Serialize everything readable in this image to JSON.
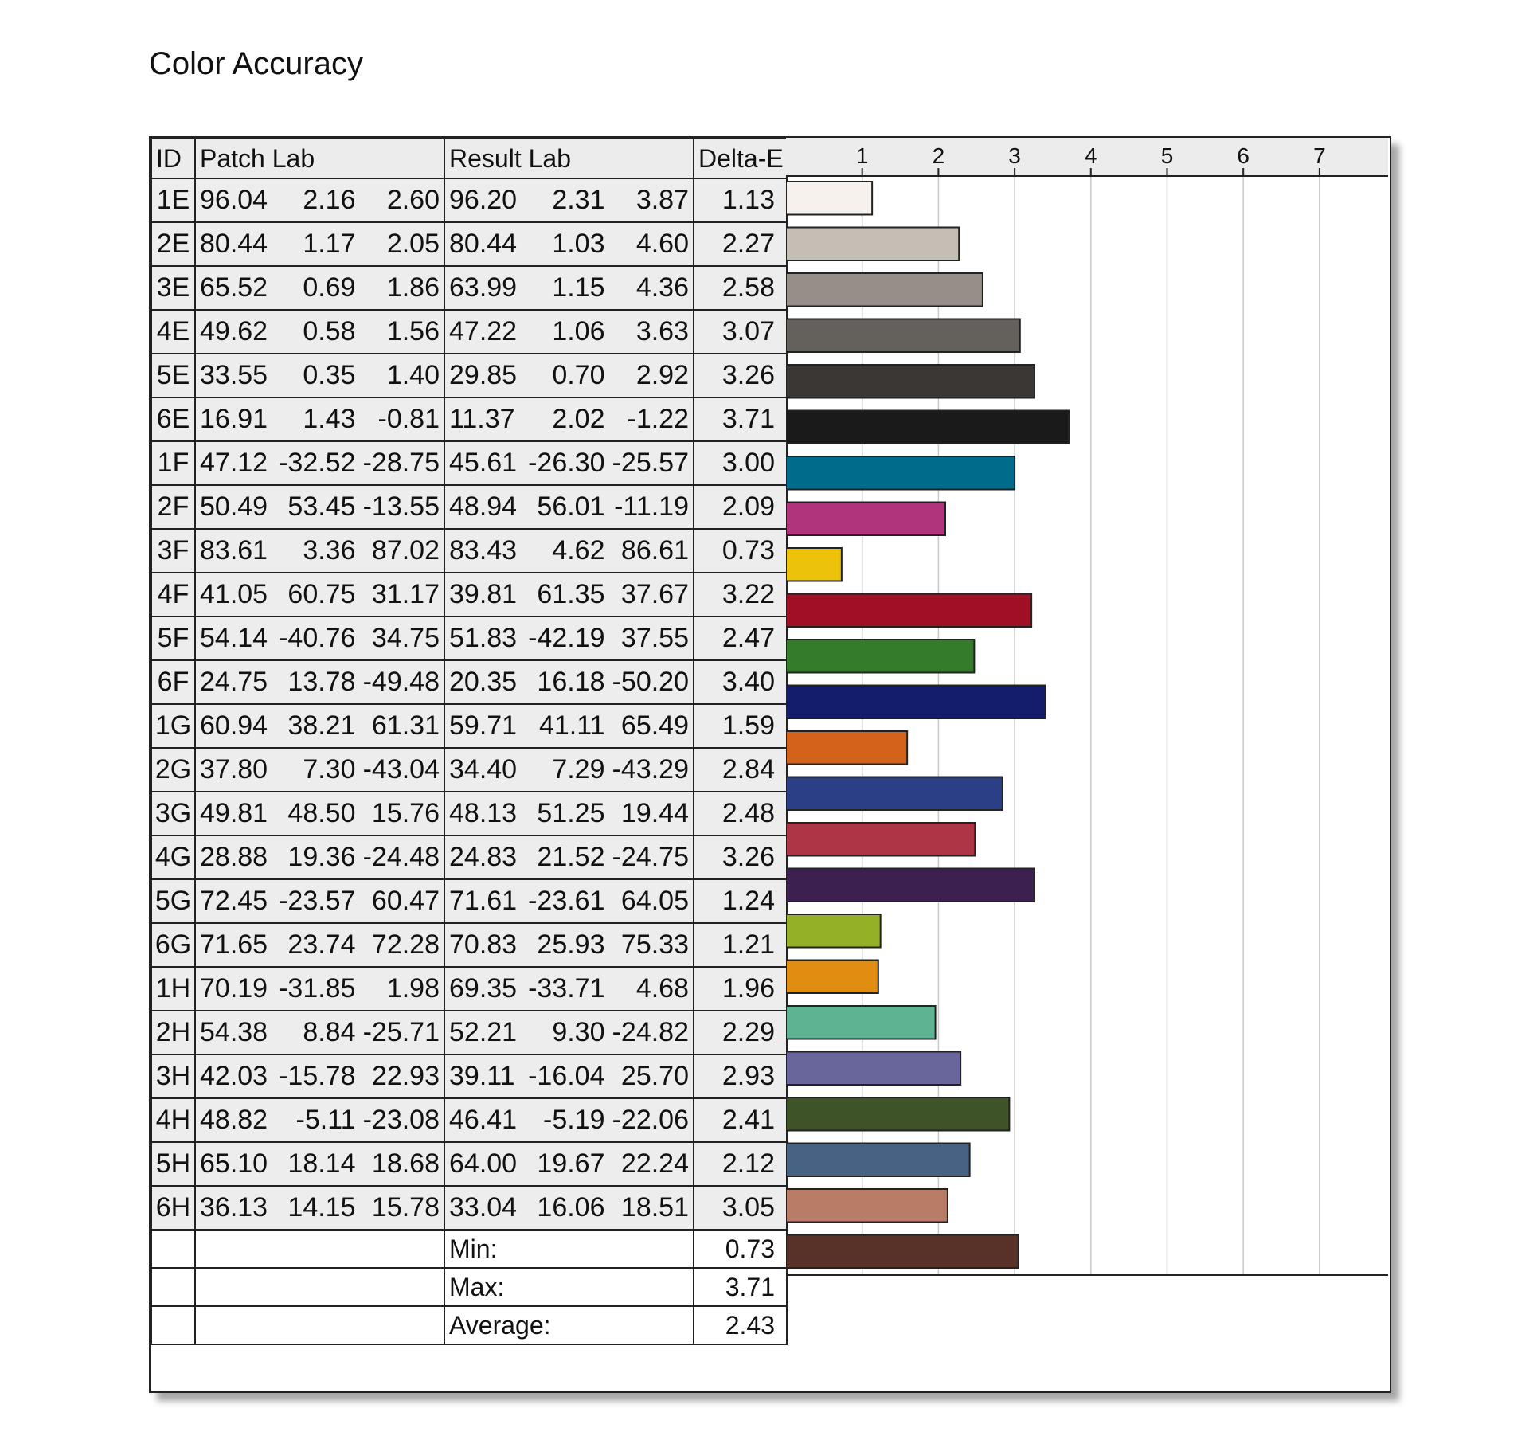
{
  "title": "Color Accuracy",
  "columns": {
    "id": "ID",
    "patch": "Patch Lab",
    "result": "Result Lab",
    "delta": "Delta-E"
  },
  "rows": [
    {
      "id": "1E",
      "patch": [
        "96.04",
        "2.16",
        "2.60"
      ],
      "result": [
        "96.20",
        "2.31",
        "3.87"
      ],
      "de": "1.13",
      "color": "#f7f1ee"
    },
    {
      "id": "2E",
      "patch": [
        "80.44",
        "1.17",
        "2.05"
      ],
      "result": [
        "80.44",
        "1.03",
        "4.60"
      ],
      "de": "2.27",
      "color": "#c5beb4"
    },
    {
      "id": "3E",
      "patch": [
        "65.52",
        "0.69",
        "1.86"
      ],
      "result": [
        "63.99",
        "1.15",
        "4.36"
      ],
      "de": "2.58",
      "color": "#968f88"
    },
    {
      "id": "4E",
      "patch": [
        "49.62",
        "0.58",
        "1.56"
      ],
      "result": [
        "47.22",
        "1.06",
        "3.63"
      ],
      "de": "3.07",
      "color": "#64605b"
    },
    {
      "id": "5E",
      "patch": [
        "33.55",
        "0.35",
        "1.40"
      ],
      "result": [
        "29.85",
        "0.70",
        "2.92"
      ],
      "de": "3.26",
      "color": "#3b3735"
    },
    {
      "id": "6E",
      "patch": [
        "16.91",
        "1.43",
        "-0.81"
      ],
      "result": [
        "11.37",
        "2.02",
        "-1.22"
      ],
      "de": "3.71",
      "color": "#1b1a1b"
    },
    {
      "id": "1F",
      "patch": [
        "47.12",
        "-32.52",
        "-28.75"
      ],
      "result": [
        "45.61",
        "-26.30",
        "-25.57"
      ],
      "de": "3.00",
      "color": "#006b8b"
    },
    {
      "id": "2F",
      "patch": [
        "50.49",
        "53.45",
        "-13.55"
      ],
      "result": [
        "48.94",
        "56.01",
        "-11.19"
      ],
      "de": "2.09",
      "color": "#b0347c"
    },
    {
      "id": "3F",
      "patch": [
        "83.61",
        "3.36",
        "87.02"
      ],
      "result": [
        "83.43",
        "4.62",
        "86.61"
      ],
      "de": "0.73",
      "color": "#ecc30a"
    },
    {
      "id": "4F",
      "patch": [
        "41.05",
        "60.75",
        "31.17"
      ],
      "result": [
        "39.81",
        "61.35",
        "37.67"
      ],
      "de": "3.22",
      "color": "#a10f24"
    },
    {
      "id": "5F",
      "patch": [
        "54.14",
        "-40.76",
        "34.75"
      ],
      "result": [
        "51.83",
        "-42.19",
        "37.55"
      ],
      "de": "2.47",
      "color": "#347b2c"
    },
    {
      "id": "6F",
      "patch": [
        "24.75",
        "13.78",
        "-49.48"
      ],
      "result": [
        "20.35",
        "16.18",
        "-50.20"
      ],
      "de": "3.40",
      "color": "#141d6a"
    },
    {
      "id": "1G",
      "patch": [
        "60.94",
        "38.21",
        "61.31"
      ],
      "result": [
        "59.71",
        "41.11",
        "65.49"
      ],
      "de": "1.59",
      "color": "#d4621a"
    },
    {
      "id": "2G",
      "patch": [
        "37.80",
        "7.30",
        "-43.04"
      ],
      "result": [
        "34.40",
        "7.29",
        "-43.29"
      ],
      "de": "2.84",
      "color": "#2b3f86"
    },
    {
      "id": "3G",
      "patch": [
        "49.81",
        "48.50",
        "15.76"
      ],
      "result": [
        "48.13",
        "51.25",
        "19.44"
      ],
      "de": "2.48",
      "color": "#ae3545"
    },
    {
      "id": "4G",
      "patch": [
        "28.88",
        "19.36",
        "-24.48"
      ],
      "result": [
        "24.83",
        "21.52",
        "-24.75"
      ],
      "de": "3.26",
      "color": "#3c2150"
    },
    {
      "id": "5G",
      "patch": [
        "72.45",
        "-23.57",
        "60.47"
      ],
      "result": [
        "71.61",
        "-23.61",
        "64.05"
      ],
      "de": "1.24",
      "color": "#93b026"
    },
    {
      "id": "6G",
      "patch": [
        "71.65",
        "23.74",
        "72.28"
      ],
      "result": [
        "70.83",
        "25.93",
        "75.33"
      ],
      "de": "1.21",
      "color": "#e08d12"
    },
    {
      "id": "1H",
      "patch": [
        "70.19",
        "-31.85",
        "1.98"
      ],
      "result": [
        "69.35",
        "-33.71",
        "4.68"
      ],
      "de": "1.96",
      "color": "#5db392"
    },
    {
      "id": "2H",
      "patch": [
        "54.38",
        "8.84",
        "-25.71"
      ],
      "result": [
        "52.21",
        "9.30",
        "-24.82"
      ],
      "de": "2.29",
      "color": "#68669a"
    },
    {
      "id": "3H",
      "patch": [
        "42.03",
        "-15.78",
        "22.93"
      ],
      "result": [
        "39.11",
        "-16.04",
        "25.70"
      ],
      "de": "2.93",
      "color": "#3e5328"
    },
    {
      "id": "4H",
      "patch": [
        "48.82",
        "-5.11",
        "-23.08"
      ],
      "result": [
        "46.41",
        "-5.19",
        "-22.06"
      ],
      "de": "2.41",
      "color": "#486283"
    },
    {
      "id": "5H",
      "patch": [
        "65.10",
        "18.14",
        "18.68"
      ],
      "result": [
        "64.00",
        "19.67",
        "22.24"
      ],
      "de": "2.12",
      "color": "#b97d67"
    },
    {
      "id": "6H",
      "patch": [
        "36.13",
        "14.15",
        "15.78"
      ],
      "result": [
        "33.04",
        "16.06",
        "18.51"
      ],
      "de": "3.05",
      "color": "#583229"
    }
  ],
  "summary": [
    {
      "label": "Min:",
      "value": "0.73"
    },
    {
      "label": "Max:",
      "value": "3.71"
    },
    {
      "label": "Average:",
      "value": "2.43"
    }
  ],
  "chart_data": {
    "type": "bar",
    "orientation": "horizontal",
    "title": "Color Accuracy",
    "categories": [
      "1E",
      "2E",
      "3E",
      "4E",
      "5E",
      "6E",
      "1F",
      "2F",
      "3F",
      "4F",
      "5F",
      "6F",
      "1G",
      "2G",
      "3G",
      "4G",
      "5G",
      "6G",
      "1H",
      "2H",
      "3H",
      "4H",
      "5H",
      "6H"
    ],
    "values": [
      1.13,
      2.27,
      2.58,
      3.07,
      3.26,
      3.71,
      3.0,
      2.09,
      0.73,
      3.22,
      2.47,
      3.4,
      1.59,
      2.84,
      2.48,
      3.26,
      1.24,
      1.21,
      1.96,
      2.29,
      2.93,
      2.41,
      2.12,
      3.05
    ],
    "xlim": [
      0,
      7.9
    ],
    "ticks": [
      "1",
      "2",
      "3",
      "4",
      "5",
      "6",
      "7"
    ],
    "grid": true,
    "xlabel": "",
    "ylabel": ""
  }
}
